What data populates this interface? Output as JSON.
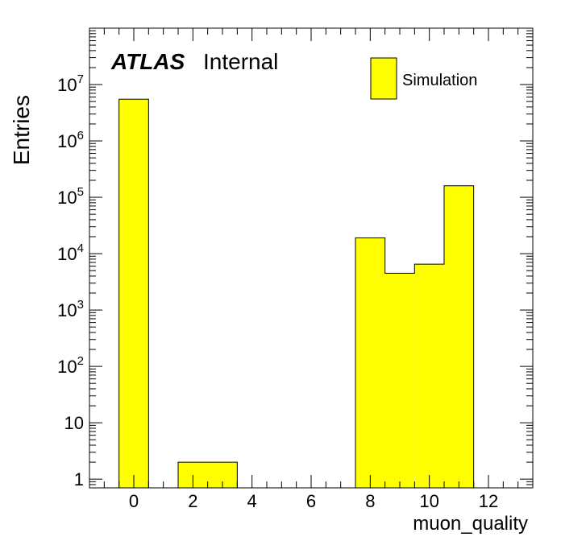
{
  "chart_data": {
    "type": "bar",
    "title": "",
    "xlabel": "muon_quality",
    "ylabel": "Entries",
    "x_range": [
      -1.5,
      13.5
    ],
    "ylim": [
      0.7,
      100000000
    ],
    "y_scale": "log",
    "x_ticks": [
      {
        "value": 0,
        "label": "0"
      },
      {
        "value": 2,
        "label": "2"
      },
      {
        "value": 4,
        "label": "4"
      },
      {
        "value": 6,
        "label": "6"
      },
      {
        "value": 8,
        "label": "8"
      },
      {
        "value": 10,
        "label": "10"
      },
      {
        "value": 12,
        "label": "12"
      }
    ],
    "y_ticks": [
      {
        "value": 1,
        "base": "1",
        "exp": ""
      },
      {
        "value": 10,
        "base": "10",
        "exp": ""
      },
      {
        "value": 100,
        "base": "10",
        "exp": "2"
      },
      {
        "value": 1000,
        "base": "10",
        "exp": "3"
      },
      {
        "value": 10000,
        "base": "10",
        "exp": "4"
      },
      {
        "value": 100000,
        "base": "10",
        "exp": "5"
      },
      {
        "value": 1000000,
        "base": "10",
        "exp": "6"
      },
      {
        "value": 10000000,
        "base": "10",
        "exp": "7"
      }
    ],
    "bins": [
      {
        "low": -0.5,
        "high": 0.5,
        "value": 5500000
      },
      {
        "low": 1.5,
        "high": 2.5,
        "value": 2
      },
      {
        "low": 2.5,
        "high": 3.5,
        "value": 2
      },
      {
        "low": 7.5,
        "high": 8.5,
        "value": 19000
      },
      {
        "low": 8.5,
        "high": 9.5,
        "value": 4500
      },
      {
        "low": 9.5,
        "high": 10.5,
        "value": 6500
      },
      {
        "low": 10.5,
        "high": 11.5,
        "value": 160000
      }
    ],
    "series": [
      {
        "name": "Simulation",
        "color": "#ffff00"
      }
    ],
    "legend": {
      "position": "top-right",
      "label": "Simulation"
    },
    "label_main": "ATLAS",
    "label_sub": "Internal",
    "grid": false
  }
}
